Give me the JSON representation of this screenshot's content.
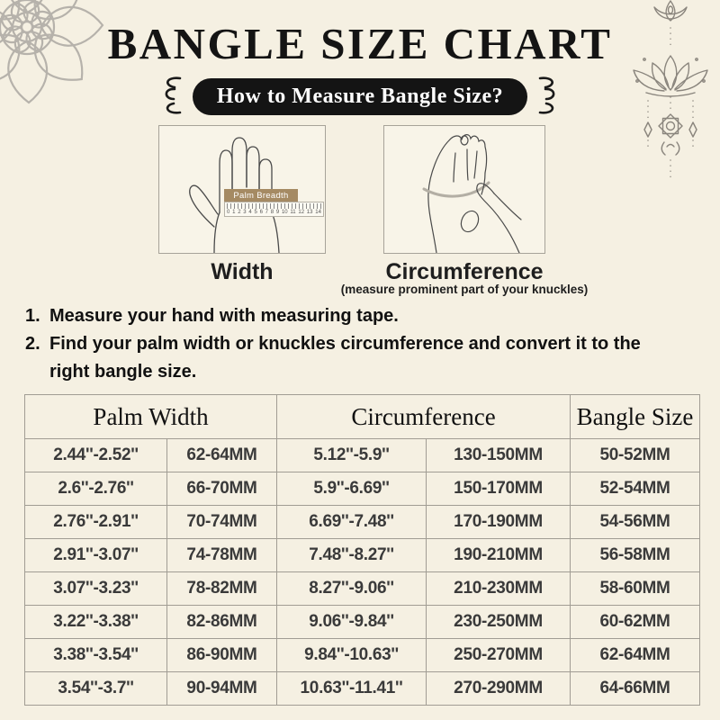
{
  "title": "BANGLE SIZE CHART",
  "badge": {
    "label": "How to Measure Bangle Size?"
  },
  "diagrams": {
    "width": {
      "caption": "Width",
      "ruler_label": "Palm Breadth",
      "ruler_numbers": [
        "0",
        "1",
        "2",
        "3",
        "4",
        "5",
        "6",
        "7",
        "8",
        "9",
        "10",
        "11",
        "12",
        "13",
        "14"
      ]
    },
    "circumference": {
      "caption": "Circumference",
      "note": "(measure prominent part of your knuckles)"
    }
  },
  "instructions": [
    {
      "num": "1.",
      "text": "Measure your hand with measuring tape."
    },
    {
      "num": "2.",
      "text": "Find your palm width or knuckles circumference and convert it to the right bangle size."
    }
  ],
  "table": {
    "headers": {
      "palm_width": "Palm Width",
      "circumference": "Circumference",
      "bangle_size": "Bangle Size"
    },
    "rows": [
      [
        "2.44''-2.52''",
        "62-64MM",
        "5.12''-5.9''",
        "130-150MM",
        "50-52MM"
      ],
      [
        "2.6''-2.76''",
        "66-70MM",
        "5.9''-6.69''",
        "150-170MM",
        "52-54MM"
      ],
      [
        "2.76''-2.91''",
        "70-74MM",
        "6.69''-7.48''",
        "170-190MM",
        "54-56MM"
      ],
      [
        "2.91''-3.07''",
        "74-78MM",
        "7.48''-8.27''",
        "190-210MM",
        "56-58MM"
      ],
      [
        "3.07''-3.23''",
        "78-82MM",
        "8.27''-9.06''",
        "210-230MM",
        "58-60MM"
      ],
      [
        "3.22''-3.38''",
        "82-86MM",
        "9.06''-9.84''",
        "230-250MM",
        "60-62MM"
      ],
      [
        "3.38''-3.54''",
        "86-90MM",
        "9.84''-10.63''",
        "250-270MM",
        "62-64MM"
      ],
      [
        "3.54''-3.7''",
        "90-94MM",
        "10.63''-11.41''",
        "270-290MM",
        "64-66MM"
      ]
    ]
  },
  "colors": {
    "background": "#f5f0e2",
    "badge_bg": "#141414",
    "badge_text": "#ffffff",
    "table_border": "#a19d94",
    "ruler_label_bg": "#a58a63",
    "mandala_gray": "#b6b2ab",
    "lotus_gray": "#8a857d",
    "hand_line": "#4a4a4a"
  }
}
